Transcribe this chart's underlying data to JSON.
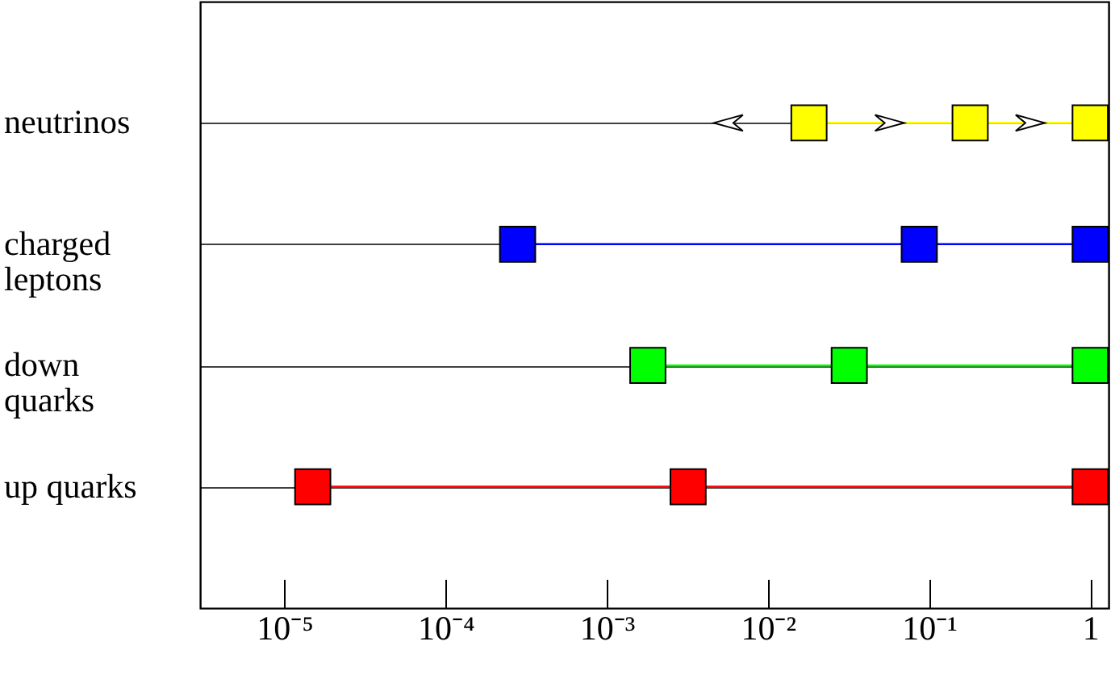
{
  "chart_data": {
    "type": "scatter",
    "orientation": "horizontal",
    "categories": [
      "neutrinos",
      "charged\nleptons",
      "down\nquarks",
      "up quarks"
    ],
    "series": [
      {
        "colors": [
          "#ffff00",
          "#0000ff",
          "#00ff00",
          "#ff0000"
        ],
        "values": [
          0.018,
          0.00028,
          0.0018,
          1.5e-05
        ]
      },
      {
        "colors": [
          "#ffff00",
          "#0000ff",
          "#00ff00",
          "#ff0000"
        ],
        "values": [
          0.18,
          0.087,
          0.032,
          0.0032
        ]
      },
      {
        "colors": [
          "#ffff00",
          "#0000ff",
          "#00ff00",
          "#ff0000"
        ],
        "values": [
          1,
          1,
          1,
          1
        ]
      }
    ],
    "log": "x",
    "xlim": [
      3e-06,
      1.3
    ],
    "xticks": [
      {
        "value": 1e-05,
        "label": "10⁻⁵"
      },
      {
        "value": 0.0001,
        "label": "10⁻⁴"
      },
      {
        "value": 0.001,
        "label": "10⁻³"
      },
      {
        "value": 0.01,
        "label": "10⁻²"
      },
      {
        "value": 0.1,
        "label": "10⁻¹"
      },
      {
        "value": 1,
        "label": "1"
      }
    ],
    "grid": "y",
    "marker": "square"
  }
}
